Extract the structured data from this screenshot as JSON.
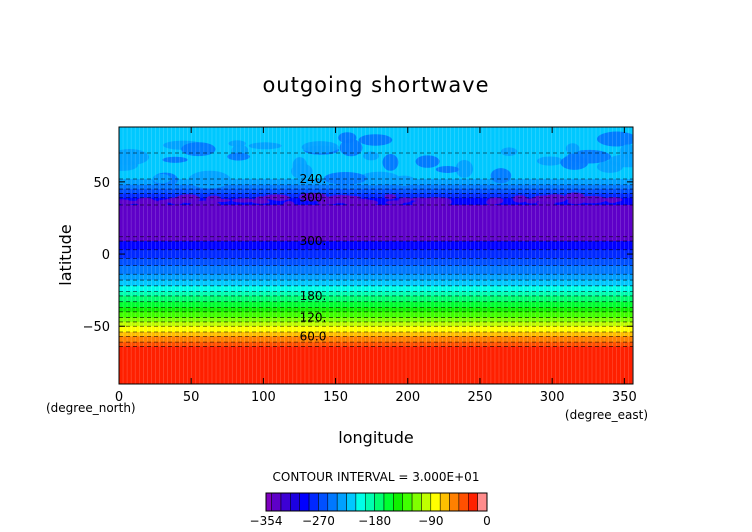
{
  "chart_data": {
    "type": "heatmap",
    "title": "outgoing shortwave",
    "xlabel": "longitude",
    "ylabel": "latitude",
    "x_unit": "(degree_east)",
    "y_unit": "(degree_north)",
    "xlim": [
      0,
      356
    ],
    "ylim": [
      -90,
      88
    ],
    "x_ticks": [
      "0",
      "50",
      "100",
      "150",
      "200",
      "250",
      "300",
      "350"
    ],
    "y_ticks": [
      "50",
      "0",
      "−50"
    ],
    "grid": false,
    "contour_interval_label": "CONTOUR INTERVAL = 3.000E+01",
    "contour_labels": [
      {
        "text": "300.",
        "value": -300
      },
      {
        "text": "300.",
        "value": -300
      },
      {
        "text": "240.",
        "value": -240
      },
      {
        "text": "180.",
        "value": -180
      },
      {
        "text": "120.",
        "value": -120
      },
      {
        "text": "60.0",
        "value": -60
      }
    ],
    "colorbar": {
      "levels": [
        -354,
        -345,
        -330,
        -315,
        -300,
        -285,
        -270,
        -255,
        -240,
        -225,
        -210,
        -195,
        -180,
        -165,
        -150,
        -135,
        -120,
        -105,
        -90,
        -75,
        -60,
        -45,
        -30,
        -15,
        0
      ],
      "colors": [
        "#7f00bf",
        "#5e00c8",
        "#3d00d4",
        "#1c00e0",
        "#0000ff",
        "#0028ff",
        "#0050ff",
        "#0078ff",
        "#00a0ff",
        "#00c8ff",
        "#00ffe8",
        "#00ffb0",
        "#00ff70",
        "#00ff30",
        "#10f000",
        "#40ff00",
        "#80ff00",
        "#c0ff00",
        "#ffff00",
        "#ffc000",
        "#ff8000",
        "#ff5000",
        "#ff2000",
        "#ff8c8c"
      ],
      "tick_labels": [
        "−354",
        "−270",
        "−180",
        "−90",
        "0"
      ]
    },
    "zonal_profile": [
      {
        "lat": 88,
        "value": -222
      },
      {
        "lat": 70,
        "value": -225
      },
      {
        "lat": 52,
        "value": -240
      },
      {
        "lat": 48,
        "value": -255
      },
      {
        "lat": 45,
        "value": -270
      },
      {
        "lat": 42,
        "value": -285
      },
      {
        "lat": 39,
        "value": -300
      },
      {
        "lat": 34,
        "value": -340
      },
      {
        "lat": 12,
        "value": -340
      },
      {
        "lat": 9,
        "value": -300
      },
      {
        "lat": 3,
        "value": -285
      },
      {
        "lat": -3,
        "value": -270
      },
      {
        "lat": -8,
        "value": -255
      },
      {
        "lat": -14,
        "value": -240
      },
      {
        "lat": -18,
        "value": -225
      },
      {
        "lat": -22,
        "value": -210
      },
      {
        "lat": -26,
        "value": -195
      },
      {
        "lat": -29,
        "value": -180
      },
      {
        "lat": -33,
        "value": -165
      },
      {
        "lat": -37,
        "value": -150
      },
      {
        "lat": -40,
        "value": -135
      },
      {
        "lat": -44,
        "value": -120
      },
      {
        "lat": -47,
        "value": -105
      },
      {
        "lat": -50,
        "value": -90
      },
      {
        "lat": -54,
        "value": -75
      },
      {
        "lat": -57,
        "value": -60
      },
      {
        "lat": -61,
        "value": -45
      },
      {
        "lat": -64,
        "value": -30
      },
      {
        "lat": -90,
        "value": -15
      }
    ]
  }
}
